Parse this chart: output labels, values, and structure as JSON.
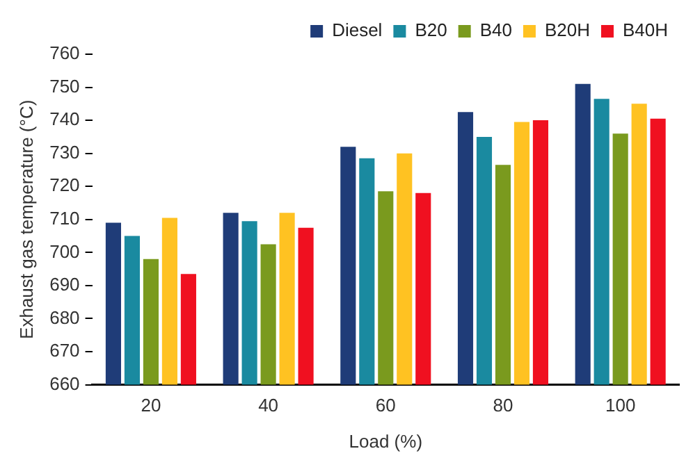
{
  "chart_data": {
    "type": "bar",
    "xlabel": "Load (%)",
    "ylabel": "Exhaust gas temperature (°C)",
    "categories": [
      "20",
      "40",
      "60",
      "80",
      "100"
    ],
    "series": [
      {
        "name": "Diesel",
        "color": "#1f3c78",
        "values": [
          709,
          712,
          732,
          742.5,
          751
        ]
      },
      {
        "name": "B20",
        "color": "#1a8aa0",
        "values": [
          705,
          709.5,
          728.5,
          735,
          746.5
        ]
      },
      {
        "name": "B40",
        "color": "#7a9a1e",
        "values": [
          698,
          702.5,
          718.5,
          726.5,
          736
        ]
      },
      {
        "name": "B20H",
        "color": "#ffc222",
        "values": [
          710.5,
          712,
          730,
          739.5,
          745
        ]
      },
      {
        "name": "B40H",
        "color": "#f01020",
        "values": [
          693.5,
          707.5,
          718,
          740,
          740.5
        ]
      }
    ],
    "ylim": [
      660,
      760
    ],
    "yticks": [
      660,
      670,
      680,
      690,
      700,
      710,
      720,
      730,
      740,
      750,
      760
    ],
    "grid": false,
    "legend": "top right"
  }
}
